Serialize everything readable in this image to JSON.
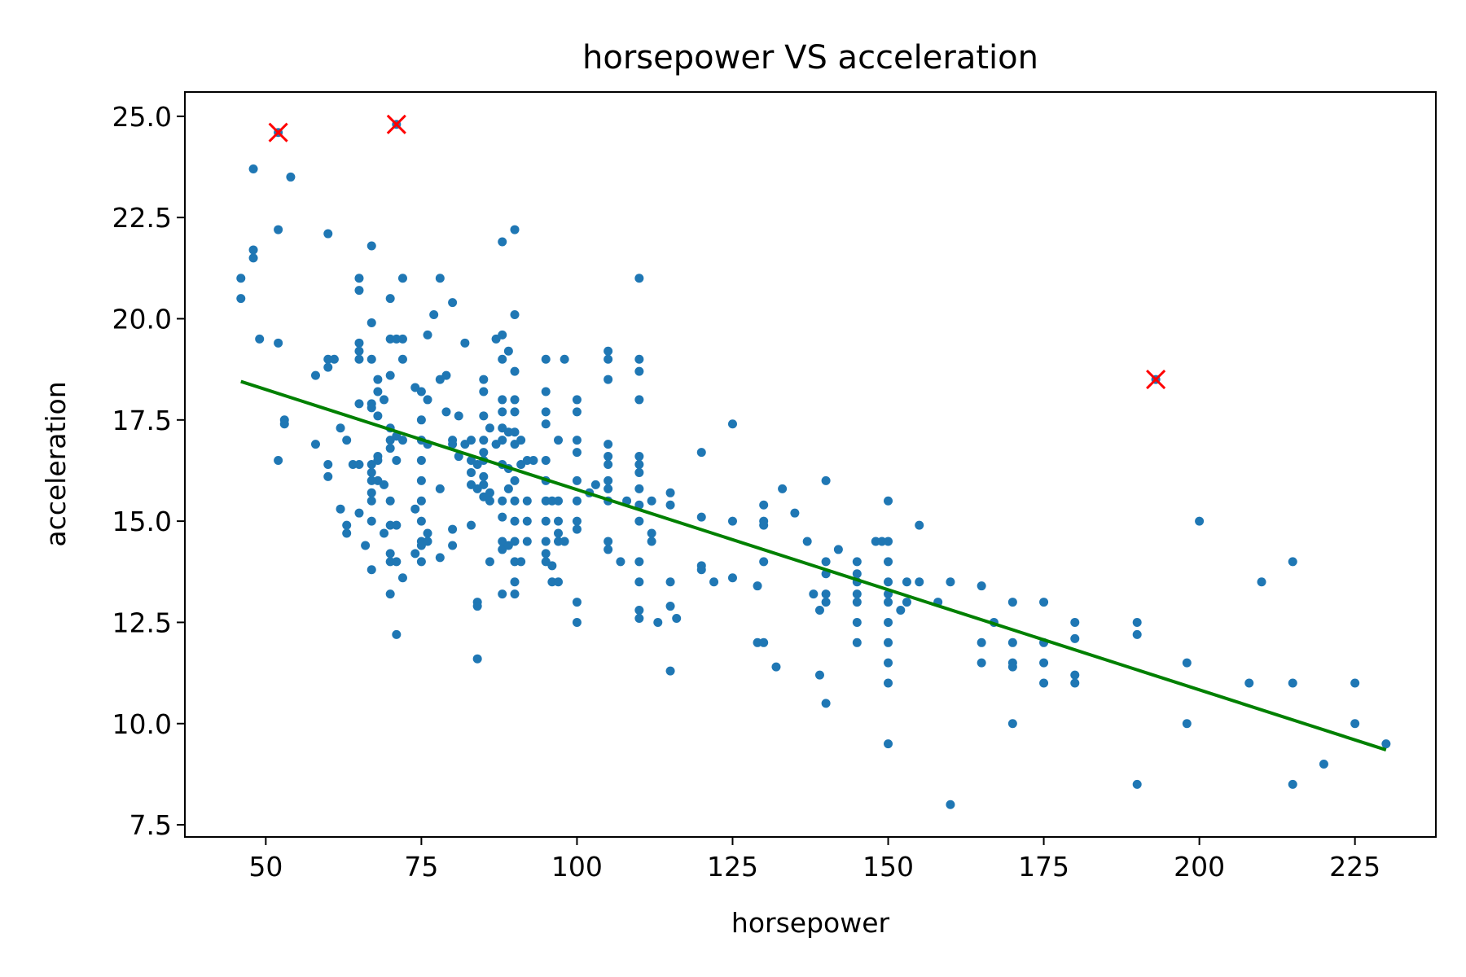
{
  "chart_data": {
    "type": "scatter",
    "title": "horsepower VS acceleration",
    "xlabel": "horsepower",
    "ylabel": "acceleration",
    "xlim": [
      37,
      238
    ],
    "ylim": [
      7.2,
      25.6
    ],
    "xticks": [
      50,
      75,
      100,
      125,
      150,
      175,
      200,
      225
    ],
    "xtick_labels": [
      "50",
      "75",
      "100",
      "125",
      "150",
      "175",
      "200",
      "225"
    ],
    "yticks": [
      7.5,
      10.0,
      12.5,
      15.0,
      17.5,
      20.0,
      22.5,
      25.0
    ],
    "ytick_labels": [
      "7.5",
      "10.0",
      "12.5",
      "15.0",
      "17.5",
      "20.0",
      "22.5",
      "25.0"
    ],
    "grid": false,
    "colors": {
      "points": "#1f77b4",
      "fit_line": "#008000",
      "outliers": "#ff0000"
    },
    "points": [
      [
        46,
        21.0
      ],
      [
        46,
        20.5
      ],
      [
        48,
        23.7
      ],
      [
        48,
        21.7
      ],
      [
        48,
        21.5
      ],
      [
        49,
        19.5
      ],
      [
        52,
        22.2
      ],
      [
        52,
        19.4
      ],
      [
        52,
        16.5
      ],
      [
        53,
        17.5
      ],
      [
        53,
        17.4
      ],
      [
        54,
        23.5
      ],
      [
        58,
        18.6
      ],
      [
        58,
        16.9
      ],
      [
        60,
        22.1
      ],
      [
        60,
        19.0
      ],
      [
        60,
        18.8
      ],
      [
        60,
        16.4
      ],
      [
        60,
        16.1
      ],
      [
        61,
        19.0
      ],
      [
        62,
        17.3
      ],
      [
        62,
        15.3
      ],
      [
        63,
        17.0
      ],
      [
        63,
        14.9
      ],
      [
        63,
        14.7
      ],
      [
        64,
        16.4
      ],
      [
        65,
        21.0
      ],
      [
        65,
        20.7
      ],
      [
        65,
        19.4
      ],
      [
        65,
        19.2
      ],
      [
        65,
        19.0
      ],
      [
        65,
        17.9
      ],
      [
        65,
        16.4
      ],
      [
        65,
        15.2
      ],
      [
        66,
        14.4
      ],
      [
        67,
        21.8
      ],
      [
        67,
        19.9
      ],
      [
        67,
        19.0
      ],
      [
        67,
        17.9
      ],
      [
        67,
        17.8
      ],
      [
        67,
        16.4
      ],
      [
        67,
        16.2
      ],
      [
        67,
        16.0
      ],
      [
        67,
        15.7
      ],
      [
        67,
        15.5
      ],
      [
        67,
        15.0
      ],
      [
        67,
        13.8
      ],
      [
        68,
        18.5
      ],
      [
        68,
        18.2
      ],
      [
        68,
        17.6
      ],
      [
        68,
        16.6
      ],
      [
        68,
        16.5
      ],
      [
        68,
        16.0
      ],
      [
        69,
        18.0
      ],
      [
        69,
        15.9
      ],
      [
        69,
        14.7
      ],
      [
        70,
        20.5
      ],
      [
        70,
        19.5
      ],
      [
        70,
        18.6
      ],
      [
        70,
        17.3
      ],
      [
        70,
        17.0
      ],
      [
        70,
        16.8
      ],
      [
        70,
        15.5
      ],
      [
        70,
        14.9
      ],
      [
        70,
        14.2
      ],
      [
        70,
        14.0
      ],
      [
        70,
        13.2
      ],
      [
        71,
        19.5
      ],
      [
        71,
        17.1
      ],
      [
        71,
        16.5
      ],
      [
        71,
        14.9
      ],
      [
        71,
        14.0
      ],
      [
        71,
        12.2
      ],
      [
        72,
        21.0
      ],
      [
        72,
        19.5
      ],
      [
        72,
        19.0
      ],
      [
        72,
        17.0
      ],
      [
        72,
        13.6
      ],
      [
        74,
        18.3
      ],
      [
        74,
        15.3
      ],
      [
        74,
        14.2
      ],
      [
        75,
        18.2
      ],
      [
        75,
        17.5
      ],
      [
        75,
        17.0
      ],
      [
        75,
        16.5
      ],
      [
        75,
        16.0
      ],
      [
        75,
        15.5
      ],
      [
        75,
        15.0
      ],
      [
        75,
        14.5
      ],
      [
        75,
        14.4
      ],
      [
        75,
        14.0
      ],
      [
        76,
        19.6
      ],
      [
        76,
        18.0
      ],
      [
        76,
        16.9
      ],
      [
        76,
        14.7
      ],
      [
        76,
        14.5
      ],
      [
        77,
        20.1
      ],
      [
        78,
        21.0
      ],
      [
        78,
        18.5
      ],
      [
        78,
        15.8
      ],
      [
        78,
        14.1
      ],
      [
        79,
        18.6
      ],
      [
        79,
        17.7
      ],
      [
        80,
        20.4
      ],
      [
        80,
        17.0
      ],
      [
        80,
        16.9
      ],
      [
        80,
        14.8
      ],
      [
        80,
        14.4
      ],
      [
        81,
        16.6
      ],
      [
        81,
        17.6
      ],
      [
        82,
        19.4
      ],
      [
        82,
        16.9
      ],
      [
        83,
        17.0
      ],
      [
        83,
        16.5
      ],
      [
        83,
        16.2
      ],
      [
        83,
        15.9
      ],
      [
        83,
        14.9
      ],
      [
        84,
        16.4
      ],
      [
        84,
        15.8
      ],
      [
        84,
        13.0
      ],
      [
        84,
        12.9
      ],
      [
        84,
        11.6
      ],
      [
        85,
        18.5
      ],
      [
        85,
        18.2
      ],
      [
        85,
        17.6
      ],
      [
        85,
        17.0
      ],
      [
        85,
        16.7
      ],
      [
        85,
        16.5
      ],
      [
        85,
        16.1
      ],
      [
        85,
        15.9
      ],
      [
        85,
        15.6
      ],
      [
        86,
        17.3
      ],
      [
        86,
        15.7
      ],
      [
        86,
        15.5
      ],
      [
        86,
        14.0
      ],
      [
        87,
        19.5
      ],
      [
        87,
        16.9
      ],
      [
        88,
        21.9
      ],
      [
        88,
        19.6
      ],
      [
        88,
        19.0
      ],
      [
        88,
        18.0
      ],
      [
        88,
        17.7
      ],
      [
        88,
        17.3
      ],
      [
        88,
        17.0
      ],
      [
        88,
        16.4
      ],
      [
        88,
        15.5
      ],
      [
        88,
        15.1
      ],
      [
        88,
        14.5
      ],
      [
        88,
        14.3
      ],
      [
        88,
        13.2
      ],
      [
        89,
        19.2
      ],
      [
        89,
        17.2
      ],
      [
        89,
        16.3
      ],
      [
        89,
        15.8
      ],
      [
        89,
        14.4
      ],
      [
        90,
        22.2
      ],
      [
        90,
        20.1
      ],
      [
        90,
        18.7
      ],
      [
        90,
        18.0
      ],
      [
        90,
        17.7
      ],
      [
        90,
        17.2
      ],
      [
        90,
        16.9
      ],
      [
        90,
        16.0
      ],
      [
        90,
        15.5
      ],
      [
        90,
        15.0
      ],
      [
        90,
        14.5
      ],
      [
        90,
        14.0
      ],
      [
        90,
        13.5
      ],
      [
        90,
        13.2
      ],
      [
        91,
        17.0
      ],
      [
        91,
        16.4
      ],
      [
        91,
        14.0
      ],
      [
        92,
        16.5
      ],
      [
        92,
        15.5
      ],
      [
        92,
        15.0
      ],
      [
        92,
        14.5
      ],
      [
        93,
        16.5
      ],
      [
        95,
        19.0
      ],
      [
        95,
        18.2
      ],
      [
        95,
        17.7
      ],
      [
        95,
        17.4
      ],
      [
        95,
        16.5
      ],
      [
        95,
        16.0
      ],
      [
        95,
        15.5
      ],
      [
        95,
        15.0
      ],
      [
        95,
        14.5
      ],
      [
        95,
        14.2
      ],
      [
        95,
        14.0
      ],
      [
        96,
        15.5
      ],
      [
        96,
        13.9
      ],
      [
        96,
        13.5
      ],
      [
        97,
        17.0
      ],
      [
        97,
        15.5
      ],
      [
        97,
        15.0
      ],
      [
        97,
        14.7
      ],
      [
        97,
        14.5
      ],
      [
        97,
        13.5
      ],
      [
        98,
        19.0
      ],
      [
        98,
        14.5
      ],
      [
        100,
        18.0
      ],
      [
        100,
        17.7
      ],
      [
        100,
        17.0
      ],
      [
        100,
        16.7
      ],
      [
        100,
        16.0
      ],
      [
        100,
        15.5
      ],
      [
        100,
        15.0
      ],
      [
        100,
        14.8
      ],
      [
        100,
        13.0
      ],
      [
        100,
        12.5
      ],
      [
        102,
        15.7
      ],
      [
        103,
        15.9
      ],
      [
        105,
        19.2
      ],
      [
        105,
        19.0
      ],
      [
        105,
        18.5
      ],
      [
        105,
        16.9
      ],
      [
        105,
        16.6
      ],
      [
        105,
        16.4
      ],
      [
        105,
        16.0
      ],
      [
        105,
        15.8
      ],
      [
        105,
        15.5
      ],
      [
        105,
        14.5
      ],
      [
        105,
        14.3
      ],
      [
        107,
        14.0
      ],
      [
        108,
        15.5
      ],
      [
        110,
        21.0
      ],
      [
        110,
        19.0
      ],
      [
        110,
        18.7
      ],
      [
        110,
        18.0
      ],
      [
        110,
        16.6
      ],
      [
        110,
        16.4
      ],
      [
        110,
        16.2
      ],
      [
        110,
        15.8
      ],
      [
        110,
        15.4
      ],
      [
        110,
        15.0
      ],
      [
        110,
        14.0
      ],
      [
        110,
        13.5
      ],
      [
        110,
        12.8
      ],
      [
        110,
        12.6
      ],
      [
        112,
        15.5
      ],
      [
        112,
        14.7
      ],
      [
        112,
        14.5
      ],
      [
        113,
        12.5
      ],
      [
        115,
        15.7
      ],
      [
        115,
        15.4
      ],
      [
        115,
        13.5
      ],
      [
        115,
        12.9
      ],
      [
        115,
        11.3
      ],
      [
        116,
        12.6
      ],
      [
        120,
        16.7
      ],
      [
        120,
        15.1
      ],
      [
        120,
        13.9
      ],
      [
        120,
        13.8
      ],
      [
        122,
        13.5
      ],
      [
        125,
        17.4
      ],
      [
        125,
        15.0
      ],
      [
        125,
        13.6
      ],
      [
        129,
        13.4
      ],
      [
        129,
        12.0
      ],
      [
        130,
        15.4
      ],
      [
        130,
        15.0
      ],
      [
        130,
        14.9
      ],
      [
        130,
        14.0
      ],
      [
        130,
        12.0
      ],
      [
        132,
        11.4
      ],
      [
        133,
        15.8
      ],
      [
        135,
        15.2
      ],
      [
        137,
        14.5
      ],
      [
        138,
        13.2
      ],
      [
        139,
        12.8
      ],
      [
        139,
        11.2
      ],
      [
        140,
        16.0
      ],
      [
        140,
        14.0
      ],
      [
        140,
        13.7
      ],
      [
        140,
        13.2
      ],
      [
        140,
        13.0
      ],
      [
        140,
        10.5
      ],
      [
        142,
        14.3
      ],
      [
        145,
        14.0
      ],
      [
        145,
        13.7
      ],
      [
        145,
        13.5
      ],
      [
        145,
        13.2
      ],
      [
        145,
        13.0
      ],
      [
        145,
        12.5
      ],
      [
        145,
        12.0
      ],
      [
        148,
        14.5
      ],
      [
        149,
        14.5
      ],
      [
        150,
        15.5
      ],
      [
        150,
        14.5
      ],
      [
        150,
        14.0
      ],
      [
        150,
        13.5
      ],
      [
        150,
        13.2
      ],
      [
        150,
        13.0
      ],
      [
        150,
        12.5
      ],
      [
        150,
        12.0
      ],
      [
        150,
        11.5
      ],
      [
        150,
        11.0
      ],
      [
        150,
        9.5
      ],
      [
        152,
        12.8
      ],
      [
        153,
        13.5
      ],
      [
        153,
        13.0
      ],
      [
        155,
        14.9
      ],
      [
        155,
        13.5
      ],
      [
        158,
        13.0
      ],
      [
        160,
        13.5
      ],
      [
        160,
        8.0
      ],
      [
        165,
        13.4
      ],
      [
        165,
        12.0
      ],
      [
        165,
        11.5
      ],
      [
        167,
        12.5
      ],
      [
        170,
        13.0
      ],
      [
        170,
        12.0
      ],
      [
        170,
        11.5
      ],
      [
        170,
        11.4
      ],
      [
        170,
        10.0
      ],
      [
        175,
        13.0
      ],
      [
        175,
        12.0
      ],
      [
        175,
        11.5
      ],
      [
        175,
        11.0
      ],
      [
        180,
        12.5
      ],
      [
        180,
        12.1
      ],
      [
        180,
        11.2
      ],
      [
        180,
        11.0
      ],
      [
        190,
        12.5
      ],
      [
        190,
        12.2
      ],
      [
        190,
        8.5
      ],
      [
        198,
        11.5
      ],
      [
        198,
        10.0
      ],
      [
        200,
        15.0
      ],
      [
        208,
        11.0
      ],
      [
        210,
        13.5
      ],
      [
        215,
        14.0
      ],
      [
        215,
        11.0
      ],
      [
        215,
        8.5
      ],
      [
        220,
        9.0
      ],
      [
        225,
        11.0
      ],
      [
        225,
        10.0
      ],
      [
        230,
        9.5
      ]
    ],
    "outliers": [
      [
        52,
        24.6
      ],
      [
        71,
        24.8
      ],
      [
        193,
        18.5
      ]
    ],
    "fit_line": {
      "x": [
        46,
        230
      ],
      "y": [
        18.45,
        9.35
      ]
    }
  }
}
